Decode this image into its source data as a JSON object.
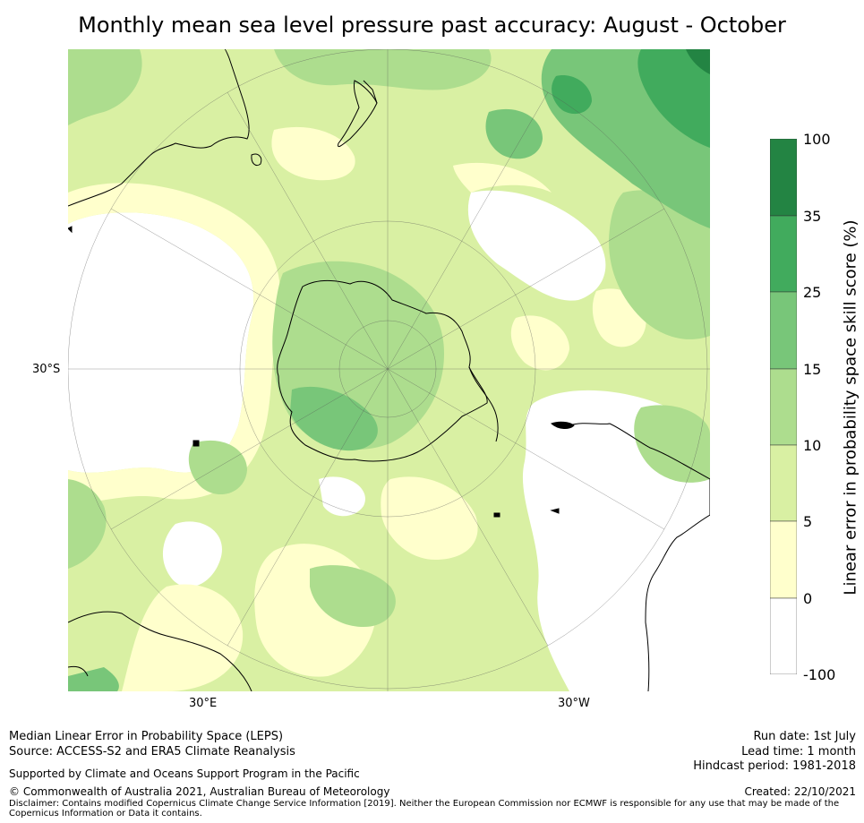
{
  "title": "Monthly mean sea level pressure past accuracy: August - October",
  "map": {
    "projection": "south-polar-stereographic",
    "lon_labels": [
      "30°E",
      "30°W"
    ],
    "lat_labels": [
      "30°S"
    ],
    "land_color": "#ffffff"
  },
  "colorbar": {
    "title": "Linear error in probability space skill score (%)",
    "ticks": [
      "100",
      "35",
      "25",
      "15",
      "10",
      "5",
      "0",
      "-100"
    ],
    "bins": [
      {
        "from": "-100",
        "to": "0",
        "color": "#ffffff"
      },
      {
        "from": "0",
        "to": "5",
        "color": "#ffffcc"
      },
      {
        "from": "5",
        "to": "10",
        "color": "#d9f0a3"
      },
      {
        "from": "10",
        "to": "15",
        "color": "#addd8e"
      },
      {
        "from": "15",
        "to": "25",
        "color": "#78c679"
      },
      {
        "from": "25",
        "to": "35",
        "color": "#41ab5d"
      },
      {
        "from": "35",
        "to": "100",
        "color": "#238443"
      }
    ]
  },
  "footer": {
    "left1": "Median Linear Error in Probability Space (LEPS)",
    "left2": "Source: ACCESS-S2 and ERA5 Climate Reanalysis",
    "left3": "Supported by Climate and Oceans Support Program in the Pacific",
    "left4": "© Commonwealth of Australia 2021, Australian Bureau of Meteorology",
    "disclaimer": "Disclaimer: Contains modified Copernicus Climate Change Service Information [2019]. Neither the European Commission nor ECMWF is responsible for any use that may be made of the Copernicus Information or Data it contains.",
    "run_date": "Run date: 1st July",
    "lead_time": "Lead time: 1 month",
    "hindcast": "Hindcast period: 1981-2018",
    "created": "Created: 22/10/2021"
  }
}
